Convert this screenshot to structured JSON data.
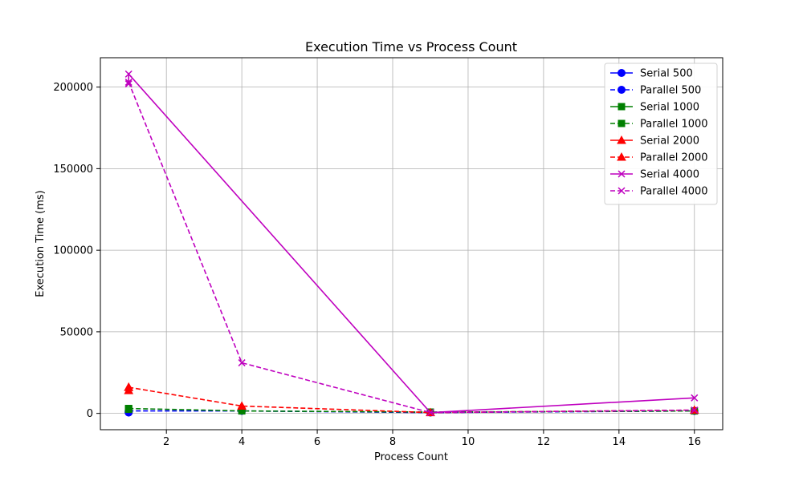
{
  "chart_data": {
    "type": "line",
    "title": "Execution Time vs Process Count",
    "xlabel": "Process Count",
    "ylabel": "Execution Time (ms)",
    "xlim": [
      0.25,
      16.75
    ],
    "ylim": [
      -10000,
      218000
    ],
    "xticks": [
      2,
      4,
      6,
      8,
      10,
      12,
      14,
      16
    ],
    "yticks": [
      0,
      50000,
      100000,
      150000,
      200000
    ],
    "grid": true,
    "legend_position": "top-right",
    "series": [
      {
        "name": "Serial 500",
        "color": "#0000ff",
        "linestyle": "solid",
        "marker": "circle",
        "points": [
          [
            1,
            500
          ],
          [
            1,
            700
          ]
        ]
      },
      {
        "name": "Parallel 500",
        "color": "#0000ff",
        "linestyle": "dashed",
        "marker": "circle",
        "points": [
          [
            1,
            1500
          ],
          [
            4,
            1500
          ],
          [
            9,
            500
          ],
          [
            16,
            1500
          ]
        ]
      },
      {
        "name": "Serial 1000",
        "color": "#008000",
        "linestyle": "solid",
        "marker": "square",
        "points": [
          [
            1,
            2500
          ],
          [
            1,
            3000
          ]
        ]
      },
      {
        "name": "Parallel 1000",
        "color": "#008000",
        "linestyle": "dashed",
        "marker": "square",
        "points": [
          [
            1,
            3000
          ],
          [
            4,
            1500
          ],
          [
            9,
            800
          ],
          [
            16,
            1500
          ]
        ]
      },
      {
        "name": "Serial 2000",
        "color": "#ff0000",
        "linestyle": "solid",
        "marker": "triangle",
        "points": [
          [
            1,
            14000
          ],
          [
            1,
            16000
          ]
        ]
      },
      {
        "name": "Parallel 2000",
        "color": "#ff0000",
        "linestyle": "dashed",
        "marker": "triangle",
        "points": [
          [
            1,
            16000
          ],
          [
            4,
            4500
          ],
          [
            9,
            500
          ],
          [
            16,
            2000
          ]
        ]
      },
      {
        "name": "Serial 4000",
        "color": "#bf00bf",
        "linestyle": "solid",
        "marker": "x",
        "points": [
          [
            1,
            202000
          ],
          [
            1,
            208000
          ],
          [
            9,
            500
          ],
          [
            16,
            9500
          ]
        ]
      },
      {
        "name": "Parallel 4000",
        "color": "#bf00bf",
        "linestyle": "dashed",
        "marker": "x",
        "points": [
          [
            1,
            203000
          ],
          [
            4,
            31000
          ],
          [
            9,
            500
          ],
          [
            16,
            2000
          ]
        ]
      }
    ]
  }
}
